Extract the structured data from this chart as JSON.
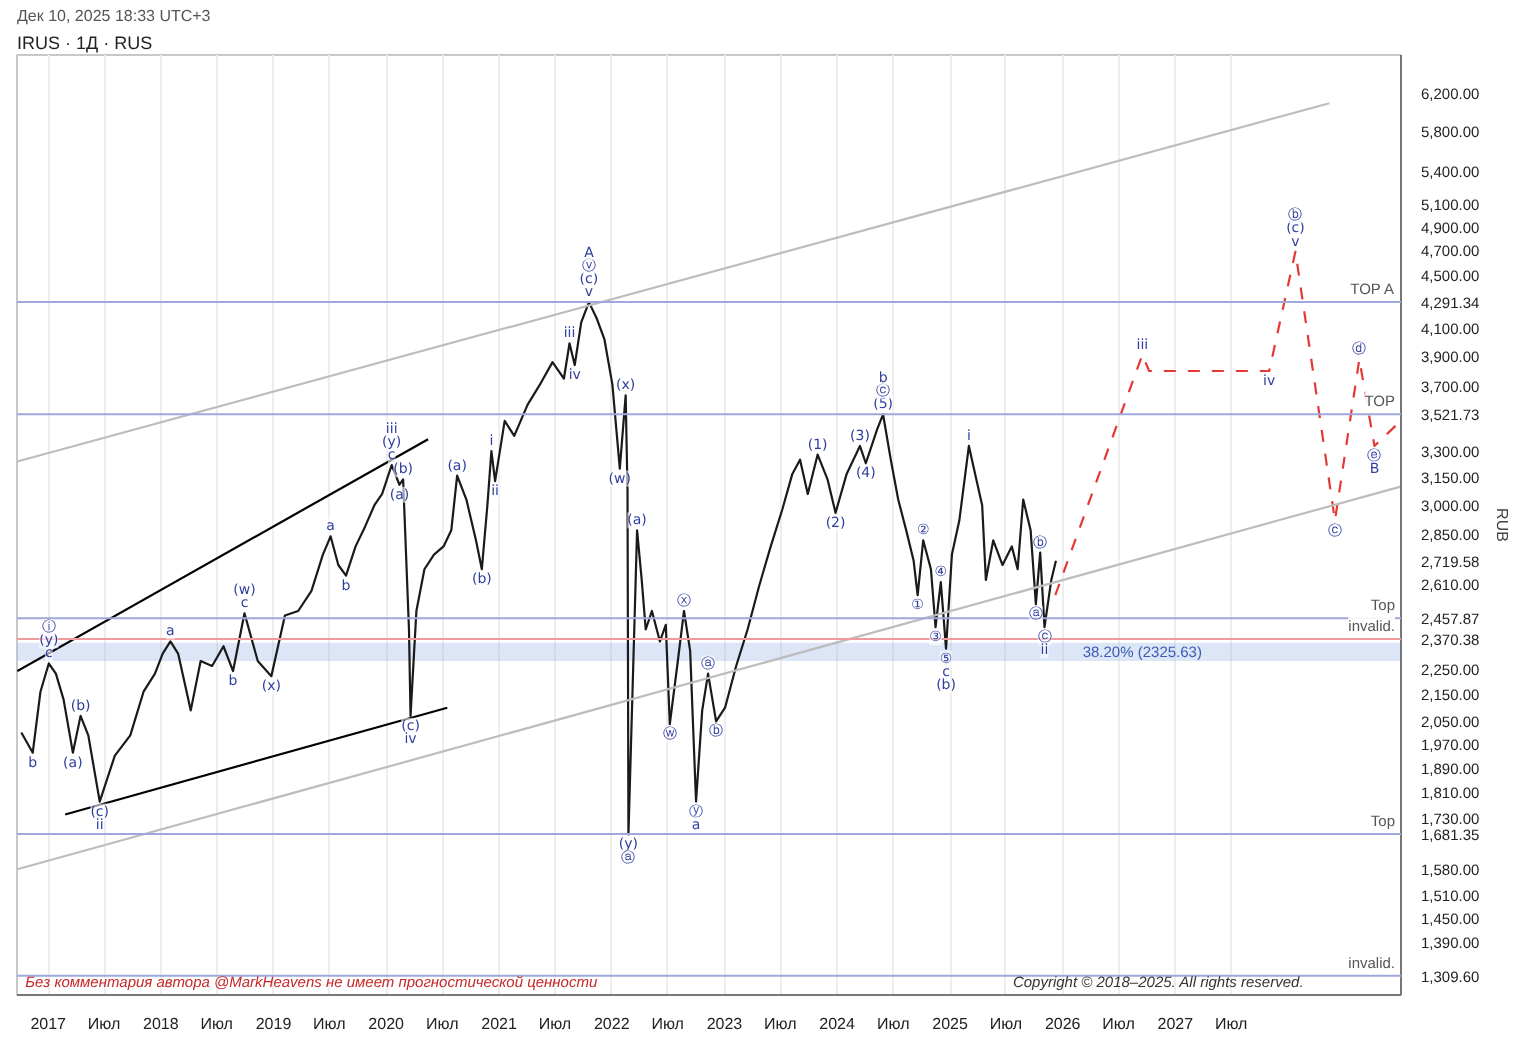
{
  "chart_data": {
    "type": "line",
    "title": "IRUS · 1Д · RUS",
    "subtitle": "Дек 10, 2025 18:33 UTC+3",
    "ylabel": "RUB",
    "log": "y",
    "grid": "x",
    "xlim": [
      "2016-09-22",
      "2029-01-01"
    ],
    "ylim": [
      1266,
      6630
    ],
    "xticks": [
      {
        "value": "2017-01-01",
        "label": "2017"
      },
      {
        "value": "2017-07-01",
        "label": "Июл"
      },
      {
        "value": "2018-01-01",
        "label": "2018"
      },
      {
        "value": "2018-07-01",
        "label": "Июл"
      },
      {
        "value": "2019-01-01",
        "label": "2019"
      },
      {
        "value": "2019-07-01",
        "label": "Июл"
      },
      {
        "value": "2020-01-01",
        "label": "2020"
      },
      {
        "value": "2020-07-01",
        "label": "Июл"
      },
      {
        "value": "2021-01-01",
        "label": "2021"
      },
      {
        "value": "2021-07-01",
        "label": "Июл"
      },
      {
        "value": "2022-01-01",
        "label": "2022"
      },
      {
        "value": "2022-07-01",
        "label": "Июл"
      },
      {
        "value": "2023-01-01",
        "label": "2023"
      },
      {
        "value": "2023-07-01",
        "label": "Июл"
      },
      {
        "value": "2024-01-01",
        "label": "2024"
      },
      {
        "value": "2024-07-01",
        "label": "Июл"
      },
      {
        "value": "2025-01-01",
        "label": "2025"
      },
      {
        "value": "2025-07-01",
        "label": "Июл"
      },
      {
        "value": "2026-01-01",
        "label": "2026"
      },
      {
        "value": "2026-07-01",
        "label": "Июл"
      },
      {
        "value": "2027-01-01",
        "label": "2027"
      },
      {
        "value": "2027-07-01",
        "label": "Июл"
      }
    ],
    "yticks": [
      {
        "value": 6200,
        "label": "6,200.00"
      },
      {
        "value": 5800,
        "label": "5,800.00"
      },
      {
        "value": 5400,
        "label": "5,400.00"
      },
      {
        "value": 5100,
        "label": "5,100.00"
      },
      {
        "value": 4900,
        "label": "4,900.00"
      },
      {
        "value": 4700,
        "label": "4,700.00"
      },
      {
        "value": 4500,
        "label": "4,500.00"
      },
      {
        "value": 4291.34,
        "label": "4,291.34"
      },
      {
        "value": 4100,
        "label": "4,100.00"
      },
      {
        "value": 3900,
        "label": "3,900.00"
      },
      {
        "value": 3700,
        "label": "3,700.00"
      },
      {
        "value": 3521.73,
        "label": "3,521.73"
      },
      {
        "value": 3300,
        "label": "3,300.00"
      },
      {
        "value": 3150,
        "label": "3,150.00"
      },
      {
        "value": 3000,
        "label": "3,000.00"
      },
      {
        "value": 2850,
        "label": "2,850.00"
      },
      {
        "value": 2719.58,
        "label": "2,719.58"
      },
      {
        "value": 2610,
        "label": "2,610.00"
      },
      {
        "value": 2457.87,
        "label": "2,457.87"
      },
      {
        "value": 2370.38,
        "label": "2,370.38"
      },
      {
        "value": 2250,
        "label": "2,250.00"
      },
      {
        "value": 2150,
        "label": "2,150.00"
      },
      {
        "value": 2050,
        "label": "2,050.00"
      },
      {
        "value": 1970,
        "label": "1,970.00"
      },
      {
        "value": 1890,
        "label": "1,890.00"
      },
      {
        "value": 1810,
        "label": "1,810.00"
      },
      {
        "value": 1730,
        "label": "1,730.00"
      },
      {
        "value": 1681.35,
        "label": "1,681.35"
      },
      {
        "value": 1580,
        "label": "1,580.00"
      },
      {
        "value": 1510,
        "label": "1,510.00"
      },
      {
        "value": 1450,
        "label": "1,450.00"
      },
      {
        "value": 1390,
        "label": "1,390.00"
      },
      {
        "value": 1309.6,
        "label": "1,309.60"
      }
    ],
    "series": [
      {
        "color": "#1a1a1a",
        "x": [
          "2016-10-06",
          "2016-11-12",
          "2016-12-07",
          "2017-01-03",
          "2017-01-26",
          "2017-02-20",
          "2017-03-22",
          "2017-04-16",
          "2017-05-11",
          "2017-06-17",
          "2017-08-05",
          "2017-09-24",
          "2017-11-06",
          "2017-12-13",
          "2018-01-07",
          "2018-02-01",
          "2018-02-26",
          "2018-04-08",
          "2018-05-10",
          "2018-06-16",
          "2018-07-23",
          "2018-08-23",
          "2018-09-29",
          "2018-11-11",
          "2018-12-25",
          "2019-02-07",
          "2019-03-22",
          "2019-05-04",
          "2019-06-10",
          "2019-07-05",
          "2019-07-30",
          "2019-08-24",
          "2019-09-24",
          "2019-10-25",
          "2019-11-24",
          "2019-12-19",
          "2020-01-19",
          "2020-02-13",
          "2020-02-25",
          "2020-03-15",
          "2020-03-20",
          "2020-04-08",
          "2020-05-04",
          "2020-06-04",
          "2020-07-05",
          "2020-07-30",
          "2020-08-18",
          "2020-09-17",
          "2020-10-18",
          "2020-11-06",
          "2020-11-24",
          "2020-12-07",
          "2020-12-19",
          "2021-01-19",
          "2021-02-19",
          "2021-04-03",
          "2021-05-16",
          "2021-06-23",
          "2021-07-30",
          "2021-08-17",
          "2021-09-03",
          "2021-09-24",
          "2021-10-19",
          "2021-11-13",
          "2021-12-08",
          "2022-01-03",
          "2022-01-27",
          "2022-02-15",
          "2022-02-21",
          "2022-02-24",
          "2022-03-24",
          "2022-04-08",
          "2022-04-21",
          "2022-05-11",
          "2022-06-06",
          "2022-06-25",
          "2022-07-08",
          "2022-08-03",
          "2022-08-23",
          "2022-09-12",
          "2022-10-01",
          "2022-10-21",
          "2022-11-09",
          "2022-12-05",
          "2023-01-03",
          "2023-02-08",
          "2023-03-17",
          "2023-04-23",
          "2023-05-31",
          "2023-07-08",
          "2023-08-09",
          "2023-09-03",
          "2023-09-28",
          "2023-10-30",
          "2023-12-01",
          "2023-12-27",
          "2024-02-01",
          "2024-03-15",
          "2024-04-03",
          "2024-05-10",
          "2024-05-29",
          "2024-06-23",
          "2024-07-17",
          "2024-08-12",
          "2024-09-05",
          "2024-09-18",
          "2024-10-06",
          "2024-10-31",
          "2024-11-15",
          "2024-12-02",
          "2024-12-19",
          "2025-01-07",
          "2025-01-31",
          "2025-03-03",
          "2025-03-27",
          "2025-04-15",
          "2025-04-27",
          "2025-05-21",
          "2025-06-20",
          "2025-07-20",
          "2025-08-08",
          "2025-08-26",
          "2025-09-19",
          "2025-10-06",
          "2025-10-20",
          "2025-11-03",
          "2025-11-25",
          "2025-12-10"
        ],
        "values": [
          2010,
          1940,
          2160,
          2270,
          2230,
          2130,
          1940,
          2070,
          2000,
          1780,
          1930,
          2000,
          2160,
          2230,
          2310,
          2360,
          2310,
          2090,
          2280,
          2260,
          2340,
          2240,
          2480,
          2280,
          2220,
          2470,
          2490,
          2580,
          2750,
          2840,
          2700,
          2650,
          2790,
          2890,
          3000,
          3060,
          3220,
          3110,
          3140,
          2410,
          2070,
          2490,
          2680,
          2750,
          2790,
          2870,
          3160,
          3030,
          2820,
          2680,
          3000,
          3300,
          3130,
          3480,
          3390,
          3580,
          3720,
          3860,
          3750,
          3990,
          3840,
          4140,
          4290,
          4170,
          4020,
          3710,
          3200,
          3640,
          3080,
          1680,
          2870,
          2630,
          2410,
          2490,
          2360,
          2430,
          2040,
          2280,
          2490,
          2320,
          1780,
          2090,
          2230,
          2050,
          2100,
          2260,
          2410,
          2600,
          2790,
          2980,
          3170,
          3250,
          3060,
          3280,
          3140,
          2960,
          3170,
          3330,
          3230,
          3430,
          3520,
          3250,
          3030,
          2870,
          2720,
          2560,
          2820,
          2680,
          2420,
          2620,
          2330,
          2750,
          2920,
          3330,
          3140,
          3000,
          2630,
          2820,
          2700,
          2790,
          2680,
          3030,
          2870,
          2520,
          2760,
          2420,
          2630,
          2720
        ]
      },
      {
        "color": "#e53935",
        "line_style": "dashed",
        "x": [
          "2025-12-08",
          "2026-09-16",
          "2026-10-08",
          "2027-11-01",
          "2028-01-25",
          "2028-06-01",
          "2028-08-19",
          "2028-10-07",
          "2028-12-31"
        ],
        "values": [
          2560,
          3910,
          3800,
          3800,
          4690,
          2920,
          3880,
          3330,
          3480
        ]
      },
      {
        "color": "#000000",
        "x": [
          "2016-09-23",
          "2020-05-16"
        ],
        "values": [
          2240,
          3370
        ]
      },
      {
        "color": "#000000",
        "x": [
          "2017-02-25",
          "2020-07-17"
        ],
        "values": [
          1740,
          2100
        ]
      },
      {
        "color": "#bdbdbd",
        "x": [
          "2016-09-23",
          "2028-05-14"
        ],
        "values": [
          3240,
          6090
        ]
      },
      {
        "color": "#bdbdbd",
        "x": [
          "2016-09-23",
          "2028-12-31"
        ],
        "values": [
          1580,
          3100
        ]
      }
    ],
    "ref_lines": [
      {
        "axis": "y",
        "value": 4291.34,
        "label": "TOP A",
        "color": "#9fa8da"
      },
      {
        "axis": "y",
        "value": 3521.73,
        "label": "TOP",
        "color": "#9fa8da"
      },
      {
        "axis": "y",
        "value": 2457.87,
        "label": "Top",
        "color": "#9fa8da"
      },
      {
        "axis": "y",
        "value": 2370.38,
        "label": "invalid.",
        "color": "#ef9a9a"
      },
      {
        "axis": "y",
        "value": 1681.35,
        "label": "Top",
        "color": "#9fa8da"
      },
      {
        "axis": "y",
        "value": 1309.6,
        "label": "invalid.",
        "color": "#9fa8da"
      }
    ],
    "bands": [
      {
        "axis": "y",
        "from": 2280,
        "to": 2355,
        "label": "38.20% (2325.63)",
        "color": "#9ab8e6"
      }
    ],
    "annotations": [
      {
        "text": "b",
        "x": "2016-11-12",
        "y": 1940
      },
      {
        "text": "c",
        "x": "2017-01-03",
        "y": 2270
      },
      {
        "text": "(y)",
        "x": "2017-01-03",
        "y": 2270
      },
      {
        "text": "ⓘ",
        "x": "2017-01-03",
        "y": 2270
      },
      {
        "text": "(a)",
        "x": "2017-03-22",
        "y": 1940
      },
      {
        "text": "(b)",
        "x": "2017-04-16",
        "y": 2070
      },
      {
        "text": "(c)",
        "x": "2017-06-17",
        "y": 1780
      },
      {
        "text": "ii",
        "x": "2017-06-17",
        "y": 1780
      },
      {
        "text": "a",
        "x": "2018-02-01",
        "y": 2360
      },
      {
        "text": "b",
        "x": "2018-08-23",
        "y": 2240
      },
      {
        "text": "c",
        "x": "2018-09-29",
        "y": 2480
      },
      {
        "text": "(w)",
        "x": "2018-09-29",
        "y": 2480
      },
      {
        "text": "(x)",
        "x": "2018-12-25",
        "y": 2220
      },
      {
        "text": "a",
        "x": "2019-07-05",
        "y": 2840
      },
      {
        "text": "b",
        "x": "2019-08-24",
        "y": 2650
      },
      {
        "text": "c",
        "x": "2020-01-19",
        "y": 3220
      },
      {
        "text": "(y)",
        "x": "2020-01-19",
        "y": 3220
      },
      {
        "text": "iii",
        "x": "2020-01-19",
        "y": 3220
      },
      {
        "text": "(a)",
        "x": "2020-02-13",
        "y": 3110
      },
      {
        "text": "(b)",
        "x": "2020-02-25",
        "y": 3140
      },
      {
        "text": "(c)",
        "x": "2020-03-20",
        "y": 2070
      },
      {
        "text": "iv",
        "x": "2020-03-20",
        "y": 2070
      },
      {
        "text": "(a)",
        "x": "2020-08-18",
        "y": 3160
      },
      {
        "text": "(b)",
        "x": "2020-11-06",
        "y": 2680
      },
      {
        "text": "i",
        "x": "2020-12-07",
        "y": 3300
      },
      {
        "text": "ii",
        "x": "2020-12-19",
        "y": 3130
      },
      {
        "text": "iii",
        "x": "2021-08-17",
        "y": 3990
      },
      {
        "text": "iv",
        "x": "2021-09-03",
        "y": 3840
      },
      {
        "text": "v",
        "x": "2021-10-19",
        "y": 4290
      },
      {
        "text": "(c)",
        "x": "2021-10-19",
        "y": 4290
      },
      {
        "text": "ⓥ",
        "x": "2021-10-19",
        "y": 4290
      },
      {
        "text": "A",
        "x": "2021-10-19",
        "y": 4290
      },
      {
        "text": "(w)",
        "x": "2022-01-27",
        "y": 3200
      },
      {
        "text": "(x)",
        "x": "2022-02-15",
        "y": 3640
      },
      {
        "text": "(y)",
        "x": "2022-02-24",
        "y": 1680
      },
      {
        "text": "ⓐ",
        "x": "2022-02-24",
        "y": 1680
      },
      {
        "text": "(a)",
        "x": "2022-03-24",
        "y": 2870
      },
      {
        "text": "ⓦ",
        "x": "2022-07-08",
        "y": 2040
      },
      {
        "text": "ⓧ",
        "x": "2022-08-23",
        "y": 2490
      },
      {
        "text": "ⓨ",
        "x": "2022-10-01",
        "y": 1780
      },
      {
        "text": "a",
        "x": "2022-10-01",
        "y": 1780
      },
      {
        "text": "ⓐ",
        "x": "2022-11-09",
        "y": 2230
      },
      {
        "text": "ⓑ",
        "x": "2022-12-05",
        "y": 2050
      },
      {
        "text": "(1)",
        "x": "2023-10-30",
        "y": 3280
      },
      {
        "text": "(2)",
        "x": "2023-12-27",
        "y": 2960
      },
      {
        "text": "(3)",
        "x": "2024-03-15",
        "y": 3330
      },
      {
        "text": "(4)",
        "x": "2024-04-03",
        "y": 3230
      },
      {
        "text": "(5)",
        "x": "2024-05-29",
        "y": 3520
      },
      {
        "text": "ⓒ",
        "x": "2024-05-29",
        "y": 3520
      },
      {
        "text": "b",
        "x": "2024-05-29",
        "y": 3520
      },
      {
        "text": "①",
        "x": "2024-09-18",
        "y": 2560
      },
      {
        "text": "②",
        "x": "2024-10-06",
        "y": 2820
      },
      {
        "text": "③",
        "x": "2024-11-15",
        "y": 2420
      },
      {
        "text": "④",
        "x": "2024-12-02",
        "y": 2620
      },
      {
        "text": "⑤",
        "x": "2024-12-19",
        "y": 2330
      },
      {
        "text": "c",
        "x": "2024-12-19",
        "y": 2330
      },
      {
        "text": "(b)",
        "x": "2024-12-19",
        "y": 2330
      },
      {
        "text": "i",
        "x": "2025-03-03",
        "y": 3330
      },
      {
        "text": "ⓐ",
        "x": "2025-10-06",
        "y": 2520
      },
      {
        "text": "ⓑ",
        "x": "2025-10-20",
        "y": 2760
      },
      {
        "text": "ⓒ",
        "x": "2025-11-03",
        "y": 2420
      },
      {
        "text": "ii",
        "x": "2025-11-03",
        "y": 2420
      },
      {
        "text": "iii",
        "x": "2026-09-16",
        "y": 3910
      },
      {
        "text": "iv",
        "x": "2027-11-01",
        "y": 3800
      },
      {
        "text": "v",
        "x": "2028-01-25",
        "y": 4690
      },
      {
        "text": "(c)",
        "x": "2028-01-25",
        "y": 4690
      },
      {
        "text": "ⓑ",
        "x": "2028-01-25",
        "y": 4690
      },
      {
        "text": "ⓒ",
        "x": "2028-06-01",
        "y": 2920
      },
      {
        "text": "ⓓ",
        "x": "2028-08-19",
        "y": 3880
      },
      {
        "text": "ⓔ",
        "x": "2028-10-07",
        "y": 3330
      },
      {
        "text": "B",
        "x": "2028-10-07",
        "y": 3330
      },
      "Без комментария автора @MarkHeavens не имеет прогностической ценности",
      "Copyright © 2018–2025. All rights reserved."
    ]
  }
}
